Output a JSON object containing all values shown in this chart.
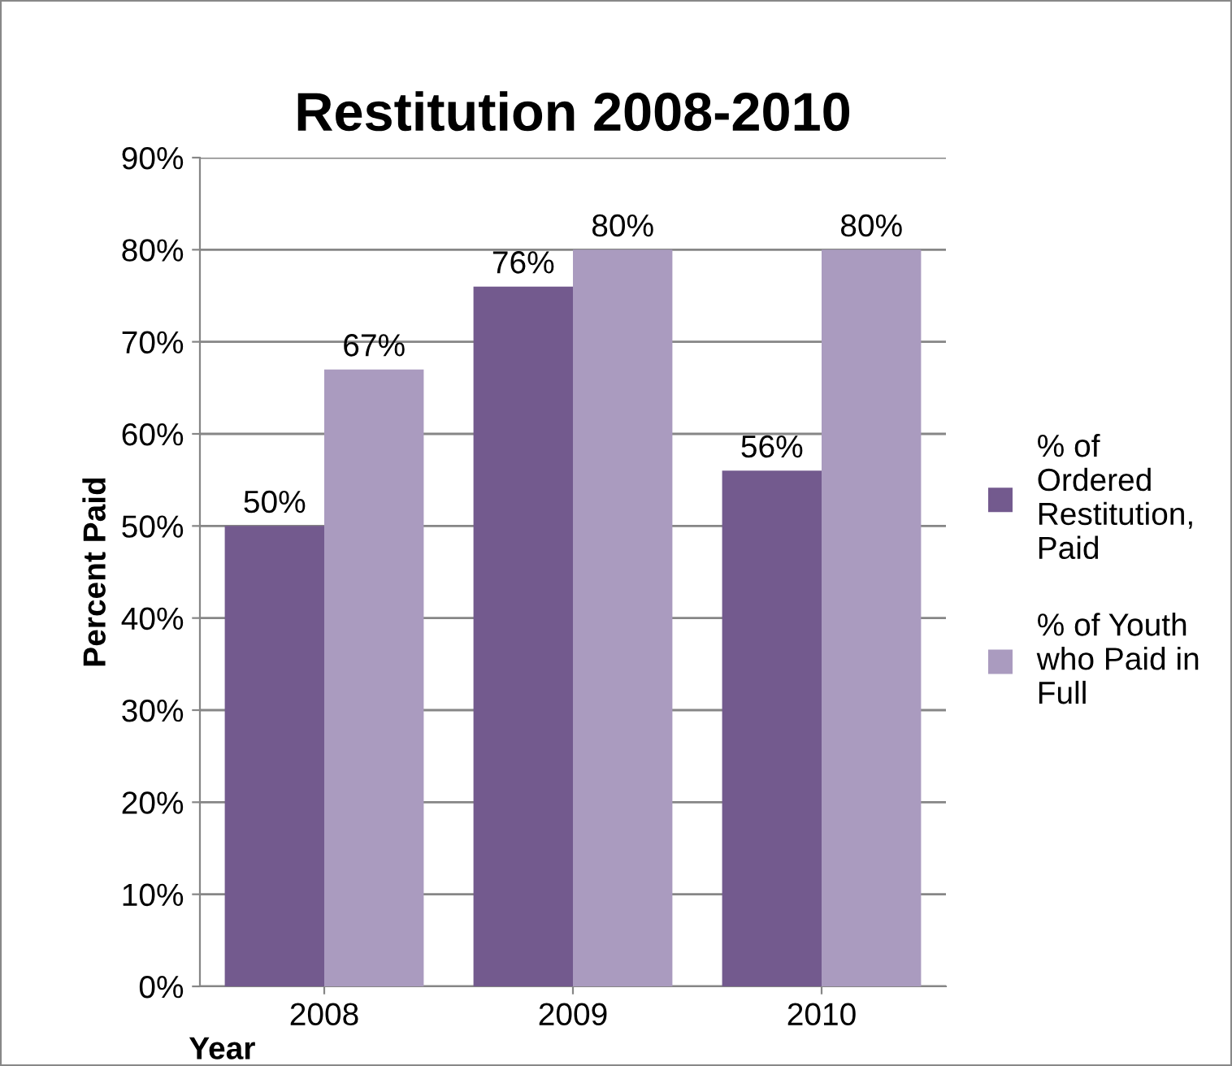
{
  "chart_data": {
    "type": "bar",
    "title": "Restitution 2008-2010",
    "xlabel": "Year",
    "ylabel": "Percent Paid",
    "categories": [
      "2008",
      "2009",
      "2010"
    ],
    "series": [
      {
        "name": "% of Ordered Restitution, Paid",
        "color": "#735a8e",
        "values": [
          50,
          76,
          56
        ],
        "value_labels": [
          "50%",
          "76%",
          "56%"
        ]
      },
      {
        "name": "% of Youth who Paid in Full",
        "color": "#aa9bbf",
        "values": [
          67,
          80,
          80
        ],
        "value_labels": [
          "67%",
          "80%",
          "80%"
        ]
      }
    ],
    "ylim": [
      0,
      90
    ],
    "yticks": [
      {
        "value": 0,
        "label": "0%"
      },
      {
        "value": 10,
        "label": "10%"
      },
      {
        "value": 20,
        "label": "20%"
      },
      {
        "value": 30,
        "label": "30%"
      },
      {
        "value": 40,
        "label": "40%"
      },
      {
        "value": 50,
        "label": "50%"
      },
      {
        "value": 60,
        "label": "60%"
      },
      {
        "value": 70,
        "label": "70%"
      },
      {
        "value": 80,
        "label": "80%"
      },
      {
        "value": 90,
        "label": "90%"
      }
    ],
    "grid": "y",
    "legend": "right"
  }
}
